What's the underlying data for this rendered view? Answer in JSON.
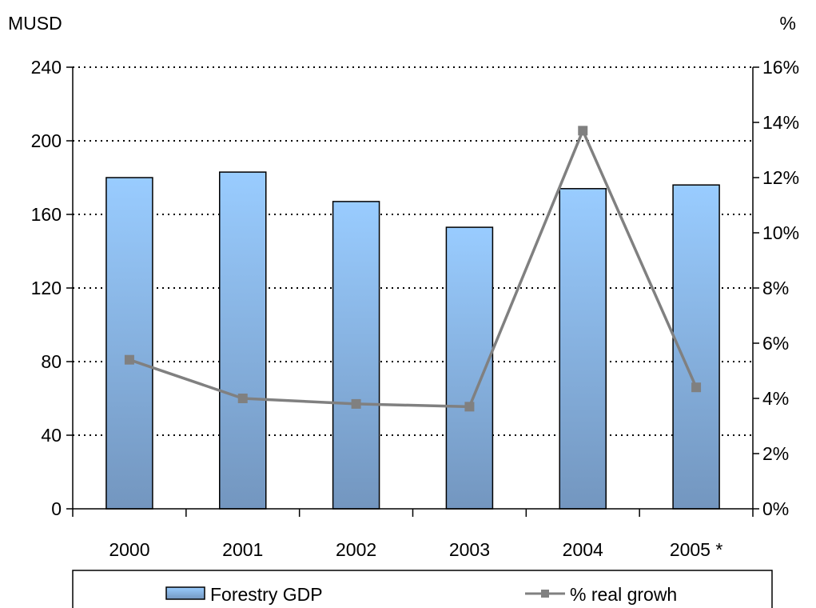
{
  "chart_data": {
    "type": "bar",
    "categories": [
      "2000",
      "2001",
      "2002",
      "2003",
      "2004",
      "2005 *"
    ],
    "series": [
      {
        "name": "Forestry GDP",
        "type": "bar",
        "axis": "left",
        "values": [
          180,
          183,
          167,
          153,
          174,
          176
        ],
        "color_top": "#99ccff",
        "color_bottom": "#7396bf"
      },
      {
        "name": "% real growh",
        "type": "line",
        "axis": "right",
        "values": [
          5.4,
          4.0,
          3.8,
          3.7,
          13.7,
          4.4
        ],
        "color": "#808080"
      }
    ],
    "left_axis": {
      "label": "MUSD",
      "ylim": [
        0,
        240
      ],
      "ticks": [
        "0",
        "40",
        "80",
        "120",
        "160",
        "200",
        "240"
      ],
      "tick_values": [
        0,
        40,
        80,
        120,
        160,
        200,
        240
      ]
    },
    "right_axis": {
      "label": "%",
      "ylim": [
        0,
        16
      ],
      "ticks": [
        "0%",
        "2%",
        "4%",
        "6%",
        "8%",
        "10%",
        "12%",
        "14%",
        "16%"
      ],
      "tick_values": [
        0,
        2,
        4,
        6,
        8,
        10,
        12,
        14,
        16
      ]
    },
    "grid": "dotted-horizontal",
    "legend_position": "bottom",
    "title": ""
  }
}
